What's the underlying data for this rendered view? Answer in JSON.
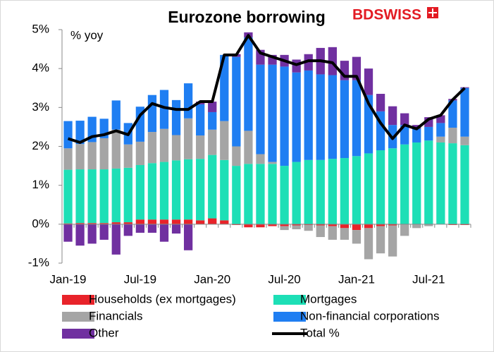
{
  "chart_data": {
    "type": "bar",
    "stacked": true,
    "title": "Eurozone borrowing",
    "annotation": "% yoy",
    "logo": "BDSWISS",
    "categories": [
      "Jan-19",
      null,
      null,
      null,
      null,
      null,
      "Jul-19",
      null,
      null,
      null,
      null,
      null,
      "Jan-20",
      null,
      null,
      null,
      null,
      null,
      "Jul-20",
      null,
      null,
      null,
      null,
      null,
      "Jan-21",
      null,
      null,
      null,
      null,
      null,
      "Jul-21",
      null,
      null,
      null
    ],
    "series": [
      {
        "name": "Households (ex mortgages)",
        "color": "#e8232a",
        "values": [
          0.02,
          0.03,
          0.03,
          0.03,
          0.05,
          0.05,
          0.12,
          0.12,
          0.12,
          0.12,
          0.12,
          0.1,
          0.15,
          0.1,
          -0.02,
          -0.08,
          -0.08,
          -0.05,
          -0.05,
          -0.03,
          -0.02,
          -0.03,
          -0.05,
          -0.1,
          -0.15,
          -0.1,
          -0.05,
          -0.03,
          0,
          0,
          0,
          0,
          -0.02,
          -0.02
        ]
      },
      {
        "name": "Mortgages",
        "color": "#1ddfb6",
        "values": [
          1.38,
          1.38,
          1.38,
          1.38,
          1.38,
          1.4,
          1.4,
          1.45,
          1.48,
          1.52,
          1.55,
          1.58,
          1.63,
          1.55,
          1.5,
          1.55,
          1.55,
          1.55,
          1.5,
          1.6,
          1.65,
          1.65,
          1.68,
          1.7,
          1.75,
          1.82,
          1.9,
          1.95,
          2.05,
          2.1,
          2.15,
          2.1,
          2.08,
          2.03
        ]
      },
      {
        "name": "Financials",
        "color": "#a5a5a5",
        "values": [
          0.55,
          0.65,
          0.7,
          0.8,
          1.0,
          0.6,
          0.6,
          0.8,
          0.85,
          0.65,
          1.05,
          0.6,
          0.65,
          1.0,
          0.5,
          0.85,
          0.25,
          0.05,
          -0.1,
          -0.1,
          -0.15,
          -0.3,
          -0.35,
          -0.3,
          -0.35,
          -0.8,
          -0.7,
          -0.8,
          -0.3,
          -0.1,
          -0.05,
          0.15,
          0.4,
          0.22
        ]
      },
      {
        "name": "Non-financial corporations",
        "color": "#1f7ef2",
        "values": [
          0.7,
          0.6,
          0.65,
          0.5,
          0.75,
          0.55,
          0.9,
          0.95,
          1.0,
          0.9,
          0.9,
          0.8,
          0.45,
          1.7,
          2.3,
          2.4,
          2.3,
          2.5,
          2.55,
          2.3,
          2.3,
          2.2,
          2.15,
          2.0,
          1.95,
          1.5,
          1.0,
          0.6,
          0.5,
          0.35,
          0.35,
          0.35,
          0.7,
          1.25
        ]
      },
      {
        "name": "Other",
        "color": "#7030a0",
        "values": [
          -0.45,
          -0.55,
          -0.5,
          -0.4,
          -0.78,
          -0.3,
          -0.22,
          -0.22,
          -0.45,
          -0.24,
          -0.67,
          0.07,
          0.27,
          0,
          0.07,
          0.13,
          0.38,
          0.25,
          0.3,
          0.33,
          0.42,
          0.68,
          0.72,
          0.5,
          0.6,
          0.68,
          0.45,
          0.48,
          0.3,
          0.1,
          0.25,
          0.2,
          0.04,
          0.02
        ]
      },
      {
        "name": "Total %",
        "type": "line",
        "color": "#000000",
        "values": [
          2.2,
          2.1,
          2.25,
          2.3,
          2.4,
          2.3,
          2.8,
          3.1,
          3.0,
          2.95,
          2.95,
          3.15,
          3.15,
          4.35,
          4.35,
          4.85,
          4.4,
          4.3,
          4.2,
          4.1,
          4.2,
          4.2,
          4.15,
          3.8,
          3.8,
          3.1,
          2.6,
          2.2,
          2.55,
          2.45,
          2.7,
          2.8,
          3.2,
          3.5
        ]
      }
    ],
    "ylim": [
      -1,
      5
    ],
    "yticks": [
      {
        "value": -1,
        "label": "-1%"
      },
      {
        "value": 0,
        "label": "0%"
      },
      {
        "value": 1,
        "label": "1%"
      },
      {
        "value": 2,
        "label": "2%"
      },
      {
        "value": 3,
        "label": "3%"
      },
      {
        "value": 4,
        "label": "4%"
      },
      {
        "value": 5,
        "label": "5%"
      }
    ],
    "grid": false,
    "legend": "bottom"
  }
}
